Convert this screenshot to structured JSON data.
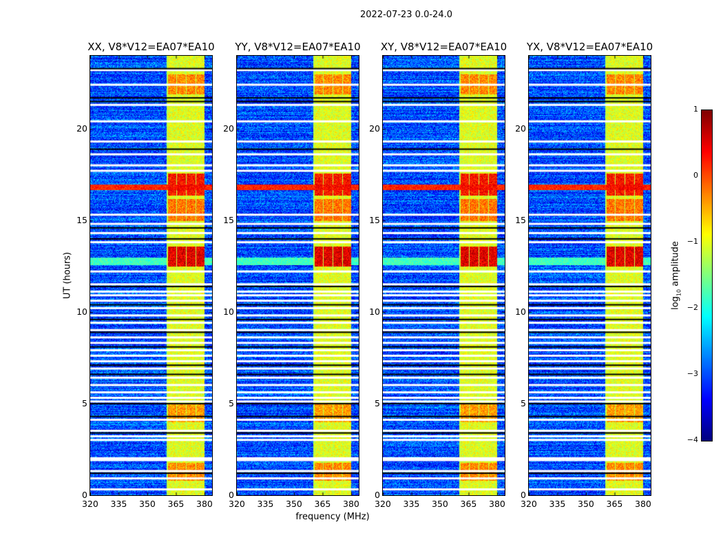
{
  "chart_data": {
    "type": "heatmap",
    "title": "2022-07-23 0.0-24.0",
    "xlabel": "frequency (MHz)",
    "ylabel": "UT (hours)",
    "xlim": [
      320,
      384
    ],
    "ylim": [
      0,
      24
    ],
    "xticks": [
      "320",
      "335",
      "350",
      "365",
      "380"
    ],
    "yticks": [
      "0",
      "5",
      "10",
      "15",
      "20"
    ],
    "panels": [
      {
        "title": "XX, V8*V12=EA07*EA10"
      },
      {
        "title": "YY, V8*V12=EA07*EA10"
      },
      {
        "title": "XY, V8*V12=EA07*EA10"
      },
      {
        "title": "YX, V8*V12=EA07*EA10"
      }
    ],
    "colorbar": {
      "label_prefix": "log",
      "label_sub": "10",
      "label_suffix": " amplitude",
      "range": [
        -4,
        1
      ],
      "ticks": [
        "1",
        "0",
        "−1",
        "−2",
        "−3",
        "−4"
      ],
      "colormap": "jet"
    },
    "background_level": -3,
    "rfi_band_mhz": [
      360,
      380
    ],
    "rfi_band_level": -1,
    "strong_rfi_hours": [
      [
        12.5,
        13.6,
        0.5
      ],
      [
        16.4,
        17.6,
        0.3
      ],
      [
        15.0,
        16.2,
        -0.2
      ],
      [
        21.9,
        23.0,
        -0.3
      ],
      [
        0.8,
        1.8,
        -0.3
      ],
      [
        4.0,
        5.0,
        -0.4
      ]
    ],
    "broadband_rfi_hours": [
      [
        16.7,
        17.0,
        0.2
      ],
      [
        12.6,
        13.0,
        -1.8
      ]
    ],
    "flagged_white_hours": [
      0.3,
      0.9,
      1.3,
      1.9,
      2.0,
      3.0,
      3.2,
      3.5,
      4.1,
      5.1,
      5.3,
      5.6,
      6.0,
      6.4,
      6.9,
      7.3,
      7.6,
      7.9,
      8.3,
      8.6,
      9.0,
      9.4,
      9.8,
      10.2,
      10.6,
      10.9,
      11.1,
      11.5,
      12.2,
      13.8,
      14.3,
      14.8,
      15.3,
      17.7,
      18.0,
      18.6,
      19.3,
      20.4,
      21.3,
      22.4,
      23.2
    ],
    "flagged_black_hours": [
      1.2,
      3.4,
      4.3,
      5.0,
      6.6,
      7.1,
      8.1,
      8.9,
      9.6,
      10.4,
      11.4,
      14.0,
      14.6,
      18.9,
      21.5,
      21.7,
      23.3
    ]
  }
}
